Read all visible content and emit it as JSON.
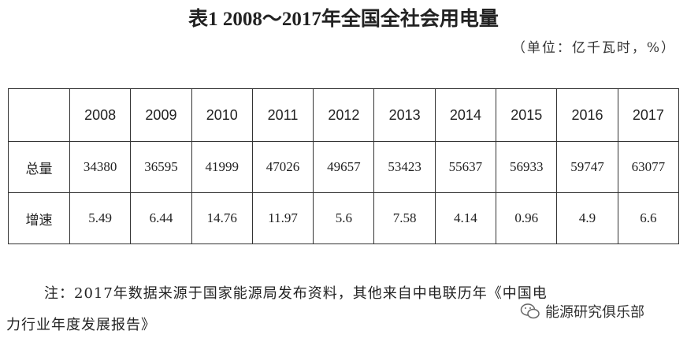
{
  "title": "表1  2008～2017年全国全社会用电量",
  "unit": "（单位：亿千瓦时，%）",
  "table": {
    "header": [
      "",
      "2008",
      "2009",
      "2010",
      "2011",
      "2012",
      "2013",
      "2014",
      "2015",
      "2016",
      "2017"
    ],
    "rows": [
      [
        "总量",
        34380,
        36595,
        41999,
        47026,
        49657,
        53423,
        55637,
        56933,
        59747,
        63077
      ],
      [
        "增速",
        5.49,
        6.44,
        14.76,
        11.97,
        5.6,
        7.58,
        4.14,
        0.96,
        4.9,
        6.6
      ]
    ]
  },
  "note": [
    "注：2017年数据来源于国家能源局发布资料，其他来自中电联历年《中国电",
    "力行业年度发展报告》"
  ],
  "watermark": "能源研究俱乐部"
}
